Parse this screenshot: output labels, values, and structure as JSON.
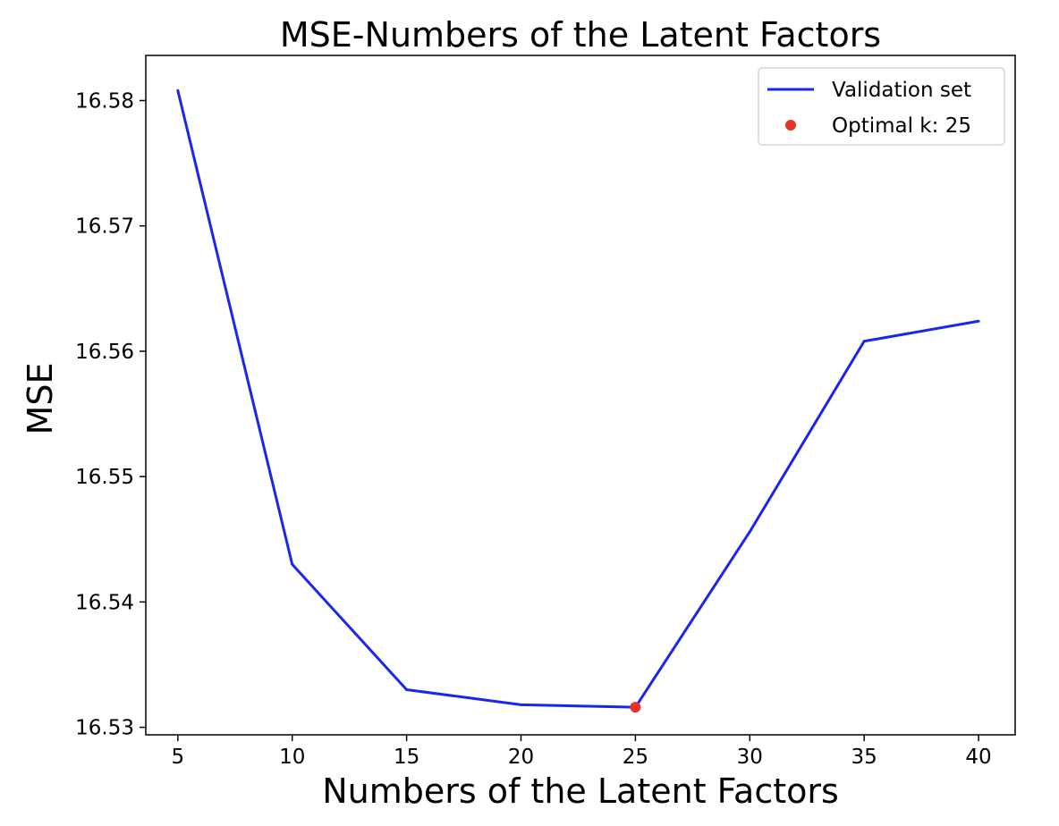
{
  "chart_data": {
    "type": "line",
    "title": "MSE-Numbers of the Latent Factors",
    "xlabel": "Numbers of the Latent Factors",
    "ylabel": "MSE",
    "x": [
      5,
      10,
      15,
      20,
      25,
      30,
      35,
      40
    ],
    "x_ticks": [
      "5",
      "10",
      "15",
      "20",
      "25",
      "30",
      "35",
      "40"
    ],
    "y_ticks": [
      "16.53",
      "16.54",
      "16.55",
      "16.56",
      "16.57",
      "16.58"
    ],
    "xlim": [
      3.6,
      41.6
    ],
    "ylim": [
      16.5294,
      16.5836
    ],
    "grid": false,
    "legend_position": "top-right",
    "series": [
      {
        "name": "Validation set",
        "type": "line",
        "color": "#1a25f0",
        "x": [
          5,
          10,
          15,
          20,
          25,
          30,
          35,
          40
        ],
        "y": [
          16.5808,
          16.543,
          16.533,
          16.5318,
          16.5316,
          16.5456,
          16.5608,
          16.5624
        ]
      },
      {
        "name": "Optimal k: 25",
        "type": "scatter",
        "color": "#e8322a",
        "x": [
          25
        ],
        "y": [
          16.5316
        ]
      }
    ]
  }
}
